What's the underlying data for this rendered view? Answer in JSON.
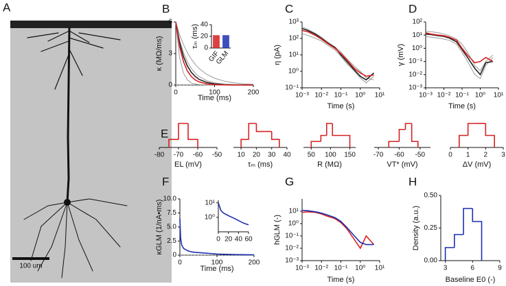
{
  "panel_a": {
    "label": "A",
    "scale_bar": "100 um"
  },
  "chart_data": [
    {
      "type": "line",
      "label": "B",
      "ylabel": "κ (MΩ/ms)",
      "xlabel": "Time (ms)",
      "x": [
        0,
        10,
        20,
        30,
        40,
        50,
        60,
        80,
        100,
        125,
        150,
        175,
        200
      ],
      "series": [
        {
          "color": "#999999",
          "values": [
            6,
            2.61,
            1.13,
            0.49,
            0.21,
            0.09,
            0.04,
            0.01,
            0,
            0,
            0,
            0,
            0
          ]
        },
        {
          "color": "#999999",
          "values": [
            6,
            4.3,
            3.08,
            2.21,
            1.58,
            1.13,
            0.81,
            0.42,
            0.21,
            0.09,
            0.04,
            0.02,
            0.01
          ]
        },
        {
          "color": "#999999",
          "values": [
            6,
            4.8,
            3.84,
            3.08,
            2.47,
            1.97,
            1.58,
            1.01,
            0.65,
            0.37,
            0.21,
            0.12,
            0.07
          ]
        },
        {
          "color": "#222222",
          "values": [
            6,
            4.02,
            2.7,
            1.81,
            1.21,
            0.82,
            0.54,
            0.25,
            0.11,
            0.04,
            0.02,
            0.01,
            0
          ]
        },
        {
          "color": "#d62020",
          "values": [
            6,
            3.64,
            2.21,
            1.34,
            0.81,
            0.49,
            0.3,
            0.11,
            0.04,
            0.01,
            0,
            0,
            0
          ]
        }
      ],
      "xlim": [
        0,
        200
      ],
      "xticks": [
        0,
        100,
        200
      ],
      "ylim": [
        0,
        6
      ],
      "yticks": [
        0,
        3,
        6
      ]
    },
    {
      "type": "bar",
      "ylabel": "τₘ (ms)",
      "categories": [
        "GIF",
        "GLM"
      ],
      "values": [
        22,
        22
      ],
      "colors": [
        "#d62020",
        "#1c2fb0"
      ],
      "ylim": [
        0,
        40
      ],
      "yticks": [
        0,
        20,
        40
      ]
    },
    {
      "type": "line",
      "label": "C",
      "ylabel": "η (pA)",
      "xlabel": "Time (s)",
      "xscale": "log",
      "yscale": "log",
      "x": [
        0.001,
        0.002,
        0.005,
        0.01,
        0.02,
        0.05,
        0.1,
        0.2,
        0.5,
        1,
        2,
        5
      ],
      "series": [
        {
          "color": "#999999",
          "values": [
            500,
            350,
            200,
            120,
            60,
            30,
            15,
            6,
            2,
            1,
            0.4,
            0.3
          ]
        },
        {
          "color": "#999999",
          "values": [
            200,
            150,
            100,
            70,
            40,
            20,
            8,
            3,
            1,
            0.4,
            0.2,
            0.5
          ]
        },
        {
          "color": "#222222",
          "values": [
            400,
            300,
            180,
            100,
            55,
            28,
            10,
            4,
            1.2,
            0.5,
            0.3,
            0.8
          ]
        },
        {
          "color": "#d62020",
          "values": [
            300,
            250,
            150,
            90,
            50,
            25,
            12,
            5,
            1.5,
            0.8,
            0.5,
            0.6
          ]
        }
      ],
      "xlim": [
        0.001,
        10
      ],
      "xticks": [
        {
          "value": 0.001,
          "label": "10⁻³"
        },
        {
          "value": 0.01,
          "label": "10⁻²"
        },
        {
          "value": 0.1,
          "label": "10⁻¹"
        },
        {
          "value": 1,
          "label": "10⁰"
        },
        {
          "value": 10,
          "label": "10¹"
        }
      ],
      "ylim": [
        0.1,
        1000
      ],
      "yticks": [
        {
          "value": 0.1,
          "label": "10⁻¹"
        },
        {
          "value": 1,
          "label": "10⁰"
        },
        {
          "value": 10,
          "label": "10¹"
        },
        {
          "value": 100,
          "label": "10²"
        },
        {
          "value": 1000,
          "label": "10³"
        }
      ]
    },
    {
      "type": "line",
      "label": "D",
      "ylabel": "γ (mV)",
      "xlabel": "Time (s)",
      "xscale": "log",
      "yscale": "log",
      "x": [
        0.001,
        0.002,
        0.005,
        0.01,
        0.02,
        0.05,
        0.1,
        0.2,
        0.5,
        1,
        2,
        5
      ],
      "series": [
        {
          "color": "#999999",
          "values": [
            20,
            18,
            15,
            12,
            9,
            5,
            2,
            0.5,
            0.05,
            0.02,
            0.1,
            0.3
          ]
        },
        {
          "color": "#999999",
          "values": [
            8,
            7,
            6,
            5,
            4,
            2,
            0.5,
            0.1,
            0.01,
            0.005,
            0.05,
            0.2
          ]
        },
        {
          "color": "#222222",
          "values": [
            12,
            11,
            9,
            8,
            6,
            3,
            0.8,
            0.2,
            0.03,
            0.01,
            0.08,
            0.1
          ]
        },
        {
          "color": "#d62020",
          "values": [
            15,
            12,
            10,
            9,
            7,
            4,
            1,
            0.3,
            0.08,
            0.1,
            0.2,
            0.1
          ]
        }
      ],
      "xlim": [
        0.001,
        10
      ],
      "xticks": [
        {
          "value": 0.001,
          "label": "10⁻³"
        },
        {
          "value": 0.01,
          "label": "10⁻²"
        },
        {
          "value": 0.1,
          "label": "10⁻¹"
        },
        {
          "value": 1,
          "label": "10⁰"
        },
        {
          "value": 10,
          "label": "10¹"
        }
      ],
      "ylim": [
        0.001,
        100
      ],
      "yticks": [
        {
          "value": 0.001,
          "label": "10⁻³"
        },
        {
          "value": 0.01,
          "label": "10⁻²"
        },
        {
          "value": 0.1,
          "label": "10⁻¹"
        },
        {
          "value": 1,
          "label": "10⁰"
        },
        {
          "value": 10,
          "label": "10¹"
        },
        {
          "value": 100,
          "label": "10²"
        }
      ]
    },
    {
      "type": "histogram",
      "label": "E",
      "xlabel": "EL (mV)",
      "color": "#d62020",
      "bins": [
        -75,
        -70,
        -65,
        -60
      ],
      "values": [
        1,
        3,
        1
      ],
      "xlim": [
        -80,
        -50
      ],
      "xticks": [
        -80,
        -70,
        -60,
        -50
      ]
    },
    {
      "type": "histogram",
      "xlabel": "τₘ (ms)",
      "color": "#d62020",
      "bins": [
        10,
        15,
        20,
        25,
        30,
        35
      ],
      "values": [
        1,
        3,
        2,
        2,
        1
      ],
      "xlim": [
        5,
        40
      ],
      "xticks": [
        10,
        20,
        30,
        40
      ]
    },
    {
      "type": "histogram",
      "xlabel": "R (MΩ)",
      "color": "#d62020",
      "bins": [
        50,
        75,
        90,
        105,
        125,
        150
      ],
      "values": [
        1,
        2,
        4,
        2,
        2
      ],
      "xlim": [
        30,
        165
      ],
      "xticks": [
        50,
        100,
        150
      ]
    },
    {
      "type": "histogram",
      "xlabel": "VT* (mV)",
      "color": "#d62020",
      "bins": [
        -65,
        -60,
        -57,
        -54,
        -51
      ],
      "values": [
        1,
        3,
        4,
        1
      ],
      "xlim": [
        -72,
        -45
      ],
      "xticks": [
        -70,
        -60,
        -50
      ]
    },
    {
      "type": "histogram",
      "xlabel": "ΔV (mV)",
      "color": "#d62020",
      "bins": [
        0.5,
        1,
        1.5,
        2,
        2.5
      ],
      "values": [
        1,
        2,
        2,
        1
      ],
      "xlim": [
        0,
        3
      ],
      "xticks": [
        0,
        1,
        2,
        3
      ]
    },
    {
      "type": "line",
      "label": "F",
      "ylabel": "κGLM (1/nA•ms)",
      "xlabel": "Time (ms)",
      "x": [
        0,
        2,
        5,
        10,
        20,
        30,
        40,
        60,
        80,
        100,
        150,
        200
      ],
      "series": [
        {
          "color": "#1c2fb0",
          "values": [
            6.5,
            3,
            1.8,
            1.2,
            0.8,
            0.6,
            0.5,
            0.4,
            0.3,
            0.2,
            0.1,
            0.05
          ]
        }
      ],
      "xlim": [
        0,
        200
      ],
      "xticks": [
        0,
        100,
        200
      ],
      "ylim": [
        0,
        10
      ],
      "yticks": [
        0,
        2.5,
        {
          "value": 5,
          "label": "5.0"
        },
        7.5,
        {
          "value": 10,
          "label": "10.0"
        }
      ]
    },
    {
      "type": "line",
      "yscale": "log",
      "x": [
        0,
        5,
        10,
        20,
        30,
        40,
        50,
        60
      ],
      "series": [
        {
          "color": "#1c2fb0",
          "values": [
            10,
            3,
            2,
            1.3,
            0.9,
            0.6,
            0.4,
            0.3
          ]
        }
      ],
      "xlim": [
        0,
        60
      ],
      "xticks": [
        0,
        20,
        40,
        60
      ],
      "ylim": [
        0.1,
        15
      ],
      "yticks": [
        {
          "value": 1,
          "label": "10⁰"
        },
        {
          "value": 10,
          "label": "10¹"
        }
      ]
    },
    {
      "type": "line",
      "label": "G",
      "ylabel": "hGLM (-)",
      "xlabel": "Time (s)",
      "xscale": "log",
      "yscale": "log",
      "x": [
        0.001,
        0.002,
        0.005,
        0.01,
        0.02,
        0.05,
        0.1,
        0.2,
        0.5,
        1,
        2,
        5
      ],
      "series": [
        {
          "color": "#d62020",
          "values": [
            8,
            9,
            8,
            6,
            4,
            2.5,
            1.2,
            0.4,
            0.05,
            0.01,
            0.1,
            0.02
          ]
        },
        {
          "color": "#1c2fb0",
          "values": [
            12,
            11,
            9,
            7,
            5,
            3,
            1.5,
            0.5,
            0.1,
            0.03,
            0.02,
            0.02
          ]
        }
      ],
      "xlim": [
        0.001,
        10
      ],
      "xticks": [
        {
          "value": 0.001,
          "label": "10⁻³"
        },
        {
          "value": 0.01,
          "label": "10⁻²"
        },
        {
          "value": 0.1,
          "label": "10⁻¹"
        },
        {
          "value": 1,
          "label": "10⁰"
        },
        {
          "value": 10,
          "label": "10¹"
        }
      ],
      "ylim": [
        0.001,
        100
      ],
      "yticks": [
        {
          "value": 0.001,
          "label": "10⁻³"
        },
        {
          "value": 0.01,
          "label": "10⁻²"
        },
        {
          "value": 0.1,
          "label": "10⁻¹"
        },
        {
          "value": 1,
          "label": "10⁰"
        },
        {
          "value": 10,
          "label": "10¹"
        }
      ]
    },
    {
      "type": "histogram",
      "label": "H",
      "ylabel": "Density (a.u.)",
      "xlabel": "Baseline E0 (-)",
      "color": "#1c2fb0",
      "bins": [
        3,
        4,
        5,
        6,
        7
      ],
      "values": [
        0.1,
        0.2,
        0.4,
        0.3
      ],
      "xlim": [
        2.5,
        9
      ],
      "xticks": [
        3,
        6,
        9
      ],
      "ylim": [
        0,
        0.5
      ],
      "yticks": [
        {
          "value": 0,
          "label": "0.00"
        },
        {
          "value": 0.25,
          "label": "0.25"
        },
        {
          "value": 0.5,
          "label": "0.50"
        }
      ]
    }
  ]
}
